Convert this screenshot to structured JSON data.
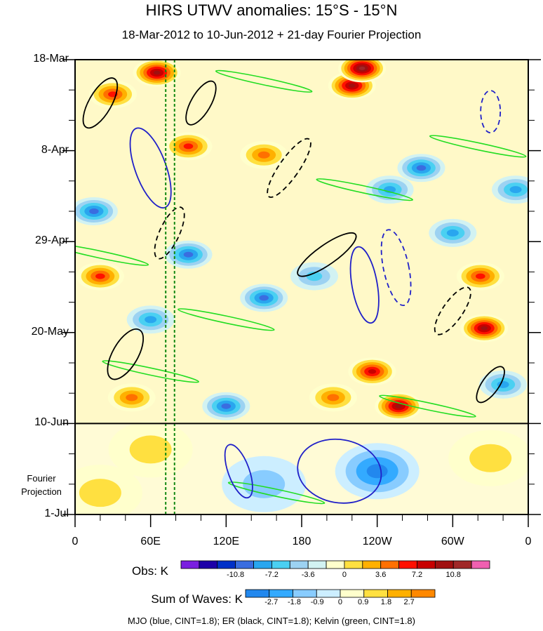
{
  "title": "HIRS UTWV anomalies: 15°S - 15°N",
  "subtitle": "18-Mar-2012 to 10-Jun-2012 + 21-day Fourier Projection",
  "footer": "MJO (blue, CINT=1.8); ER (black, CINT=1.8); Kelvin (green, CINT=1.8)",
  "projection_label_line1": "Fourier",
  "projection_label_line2": "Projection",
  "colorbars": {
    "obs": {
      "title": "Obs: K",
      "colors": [
        "#7a1fe0",
        "#1d00a8",
        "#0030c8",
        "#3a6de0",
        "#29a6ef",
        "#4ad0f2",
        "#9cd2f2",
        "#d2f2f2",
        "#ffffcc",
        "#ffe040",
        "#ffb000",
        "#ff7000",
        "#ff1000",
        "#c80000",
        "#a01010",
        "#a02828",
        "#f060b0"
      ],
      "labels": [
        "-10.8",
        "-7.2",
        "-3.6",
        "0",
        "3.6",
        "7.2",
        "10.8"
      ]
    },
    "waves": {
      "title": "Sum of Waves: K",
      "colors": [
        "#2288ee",
        "#33aaff",
        "#88ccff",
        "#cceeff",
        "#ffffcc",
        "#ffe040",
        "#ffb000",
        "#ff8800"
      ],
      "labels": [
        "-2.7",
        "-1.8",
        "-0.9",
        "0",
        "0.9",
        "1.8",
        "2.7"
      ]
    }
  },
  "chart_data": {
    "type": "heatmap",
    "x_ticks": [
      "0",
      "60E",
      "120E",
      "180",
      "120W",
      "60W",
      "0"
    ],
    "x_range": [
      0,
      360
    ],
    "y_ticks": [
      "18-Mar",
      "8-Apr",
      "29-Apr",
      "20-May",
      "10-Jun",
      "1-Jul"
    ],
    "y_range": [
      "18-Mar-2012",
      "1-Jul-2012"
    ],
    "observation_end": "10-Jun-2012",
    "highlight_longitudes": [
      72,
      79
    ],
    "overlays": {
      "mjo": {
        "color": "#2020c8",
        "contour_interval": 1.8
      },
      "er": {
        "color": "#000000",
        "contour_interval": 1.8
      },
      "kelvin": {
        "color": "#22dd22",
        "contour_interval": 1.8
      }
    },
    "obs_blobs": [
      {
        "lon": 65,
        "day": 3,
        "value": 10.8
      },
      {
        "lon": 30,
        "day": 8,
        "value": 7.2
      },
      {
        "lon": 20,
        "day": 50,
        "value": 7.2
      },
      {
        "lon": 220,
        "day": 6,
        "value": 10.8
      },
      {
        "lon": 228,
        "day": 2,
        "value": 12.6
      },
      {
        "lon": 325,
        "day": 62,
        "value": 10.8
      },
      {
        "lon": 322,
        "day": 50,
        "value": 7.2
      },
      {
        "lon": 257,
        "day": 80,
        "value": 10.8
      },
      {
        "lon": 236,
        "day": 72,
        "value": 9.0
      },
      {
        "lon": 205,
        "day": 78,
        "value": 5.4
      },
      {
        "lon": 45,
        "day": 78,
        "value": 5.4
      },
      {
        "lon": 90,
        "day": 20,
        "value": 7.2
      },
      {
        "lon": 150,
        "day": 22,
        "value": 5.4
      },
      {
        "lon": 60,
        "day": 60,
        "value": -5.4
      },
      {
        "lon": 90,
        "day": 45,
        "value": -7.2
      },
      {
        "lon": 15,
        "day": 35,
        "value": -7.2
      },
      {
        "lon": 150,
        "day": 55,
        "value": -7.2
      },
      {
        "lon": 275,
        "day": 25,
        "value": -7.2
      },
      {
        "lon": 300,
        "day": 40,
        "value": -5.4
      },
      {
        "lon": 250,
        "day": 30,
        "value": -5.4
      },
      {
        "lon": 190,
        "day": 50,
        "value": -3.6
      },
      {
        "lon": 350,
        "day": 30,
        "value": -5.4
      },
      {
        "lon": 120,
        "day": 80,
        "value": -7.2
      },
      {
        "lon": 340,
        "day": 75,
        "value": -5.4
      }
    ],
    "waves_blobs": [
      {
        "lon": 240,
        "day": 95,
        "value": -2.7
      },
      {
        "lon": 330,
        "day": 92,
        "value": 0.9
      },
      {
        "lon": 60,
        "day": 90,
        "value": 0.9
      },
      {
        "lon": 150,
        "day": 98,
        "value": -0.9
      },
      {
        "lon": 20,
        "day": 100,
        "value": 0.9
      }
    ]
  }
}
